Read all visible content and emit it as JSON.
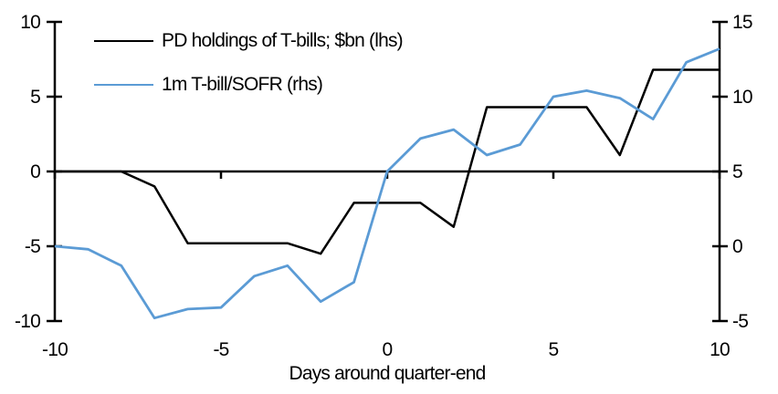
{
  "chart_data": {
    "type": "line",
    "title": "",
    "xlabel": "Days around quarter-end",
    "ylabel": "",
    "grid": false,
    "legend_position": "top-left",
    "x": [
      -10,
      -9,
      -8,
      -7,
      -6,
      -5,
      -4,
      -3,
      -2,
      -1,
      0,
      1,
      2,
      3,
      4,
      5,
      6,
      7,
      8,
      9,
      10
    ],
    "x_ticks": [
      -10,
      -5,
      0,
      5,
      10
    ],
    "left_axis": {
      "min": -10,
      "max": 10,
      "ticks": [
        10,
        5,
        0,
        -5,
        -10
      ]
    },
    "right_axis": {
      "min": -5,
      "max": 15,
      "ticks": [
        15,
        10,
        5,
        0,
        -5
      ]
    },
    "series": [
      {
        "name": "PD holdings of T-bills; $bn (lhs)",
        "axis": "left",
        "color": "#000000",
        "values": [
          0,
          0,
          0,
          -1.0,
          -4.8,
          -4.8,
          -4.8,
          -4.8,
          -5.5,
          -2.1,
          -2.1,
          -2.1,
          -3.7,
          4.3,
          4.3,
          4.3,
          4.3,
          1.1,
          6.8,
          6.8,
          6.8
        ]
      },
      {
        "name": "1m T-bill/SOFR (rhs)",
        "axis": "right",
        "color": "#5B9BD5",
        "values": [
          0.0,
          -0.2,
          -1.3,
          -4.8,
          -4.2,
          -4.1,
          -2.0,
          -1.3,
          -3.7,
          -2.4,
          5.0,
          7.2,
          7.8,
          6.1,
          6.8,
          10.0,
          10.4,
          9.9,
          8.5,
          12.3,
          13.2
        ]
      }
    ]
  }
}
